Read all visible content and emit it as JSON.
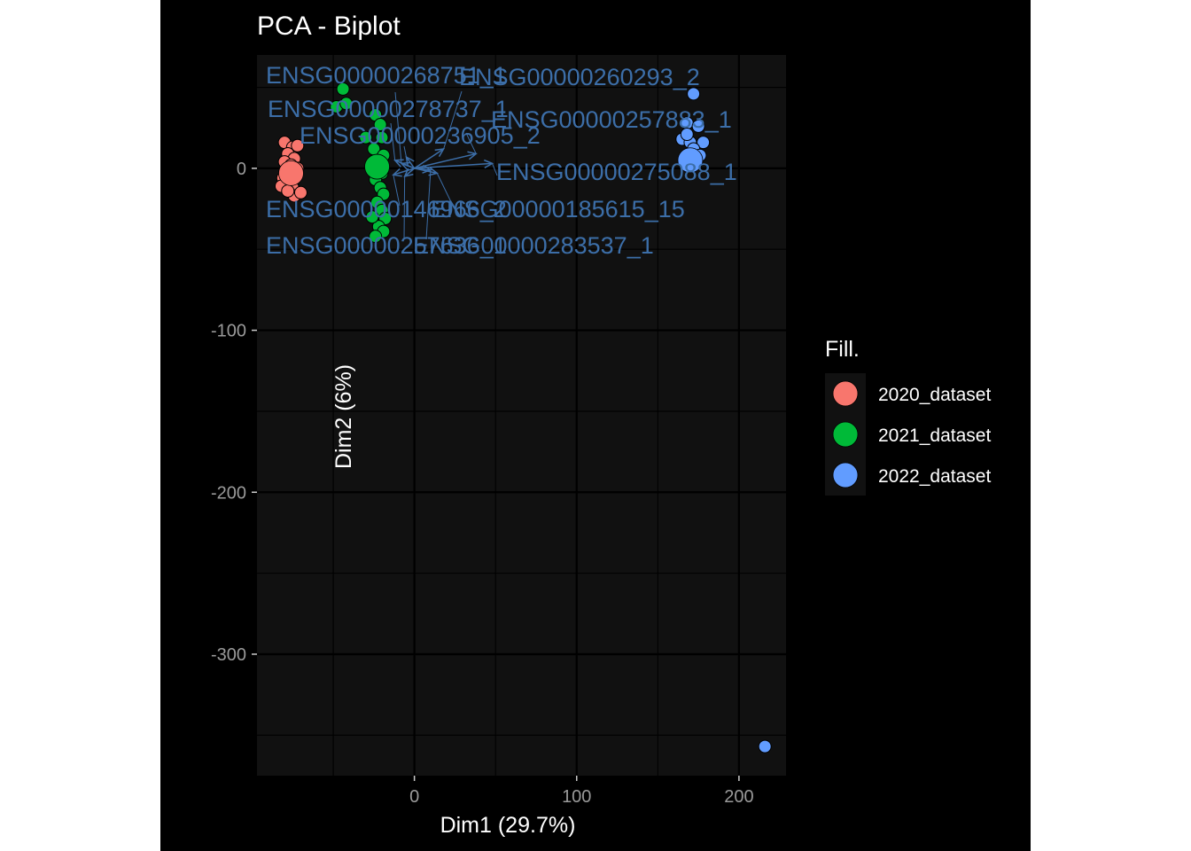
{
  "chart_data": {
    "type": "scatter",
    "title": "PCA - Biplot",
    "xlabel": "Dim1 (29.7%)",
    "ylabel": "Dim2 (6%)",
    "xlim": [
      -97,
      229
    ],
    "ylim": [
      -375,
      70
    ],
    "x_ticks": [
      0,
      100,
      200
    ],
    "x_tick_labels": [
      "0",
      "100",
      "200"
    ],
    "y_ticks": [
      0,
      -100,
      -200,
      -300
    ],
    "y_tick_labels": [
      "0",
      "-100",
      "-200",
      "-300"
    ],
    "grid": true,
    "legend": {
      "title": "Fill.",
      "placement": "right"
    },
    "series": [
      {
        "name": "2020_dataset",
        "color": "#F8766D",
        "centroid": [
          -76,
          -3
        ],
        "points": [
          [
            -80,
            16
          ],
          [
            -75,
            13
          ],
          [
            -72,
            14
          ],
          [
            -78,
            9
          ],
          [
            -74,
            6
          ],
          [
            -80,
            4
          ],
          [
            -76,
            2
          ],
          [
            -79,
            -2
          ],
          [
            -73,
            -4
          ],
          [
            -81,
            -6
          ],
          [
            -77,
            -9
          ],
          [
            -82,
            -11
          ],
          [
            -75,
            -12
          ],
          [
            -74,
            -17
          ],
          [
            -70,
            -15
          ],
          [
            -78,
            -14
          ],
          [
            -76,
            -5
          ],
          [
            -72,
            0
          ]
        ]
      },
      {
        "name": "2021_dataset",
        "color": "#00BA38",
        "centroid": [
          -23,
          1
        ],
        "points": [
          [
            -44,
            49
          ],
          [
            -48,
            38
          ],
          [
            -42,
            40
          ],
          [
            -24,
            33
          ],
          [
            -21,
            27
          ],
          [
            -30,
            19
          ],
          [
            -20,
            19
          ],
          [
            -25,
            12
          ],
          [
            -19,
            8
          ],
          [
            -22,
            3
          ],
          [
            -26,
            0
          ],
          [
            -20,
            -3
          ],
          [
            -24,
            -7
          ],
          [
            -21,
            -12
          ],
          [
            -19,
            -16
          ],
          [
            -23,
            -21
          ],
          [
            -20,
            -26
          ],
          [
            -18,
            -31
          ],
          [
            -22,
            -36
          ],
          [
            -19,
            -39
          ],
          [
            -24,
            -42
          ],
          [
            -26,
            -30
          ]
        ]
      },
      {
        "name": "2022_dataset",
        "color": "#619CFF",
        "centroid": [
          170,
          5
        ],
        "points": [
          [
            172,
            46
          ],
          [
            168,
            28
          ],
          [
            175,
            26
          ],
          [
            165,
            18
          ],
          [
            170,
            16
          ],
          [
            178,
            16
          ],
          [
            168,
            21
          ],
          [
            172,
            12
          ],
          [
            176,
            8
          ],
          [
            216,
            -357
          ]
        ]
      }
    ],
    "variables": [
      {
        "label": "ENSG00000268751_1",
        "x": -8,
        "y": 3
      },
      {
        "label": "ENSG00000260293_2",
        "x": 18,
        "y": 12
      },
      {
        "label": "ENSG00000278737_1",
        "x": -12,
        "y": 5
      },
      {
        "label": "ENSG00000257883_1",
        "x": 38,
        "y": 9
      },
      {
        "label": "ENSG00000236905_2",
        "x": -5,
        "y": 7
      },
      {
        "label": "ENSG00000275088_1",
        "x": 48,
        "y": 3
      },
      {
        "label": "ENSG00000146966_2",
        "x": -13,
        "y": -4
      },
      {
        "label": "ENSG00000185615_15",
        "x": 14,
        "y": -3
      },
      {
        "label": "ENSG00000257636_1",
        "x": -6,
        "y": -5
      },
      {
        "label": "ENSG00000283537_1",
        "x": 10,
        "y": -1
      }
    ]
  }
}
